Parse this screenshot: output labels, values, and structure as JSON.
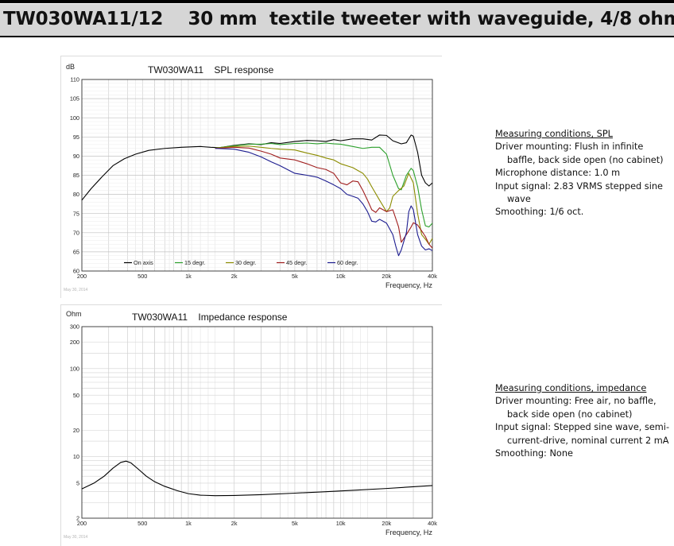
{
  "header": {
    "title": "TW030WA11/12    30 mm  textile tweeter with waveguide, 4/8 ohm"
  },
  "spl_notes": {
    "heading": "Measuring conditions, SPL",
    "lines": [
      "Driver mounting: Flush in infinite baffle, back side open  (no cabinet)",
      "Microphone distance: 1.0 m",
      "Input signal: 2.83 VRMS stepped sine wave",
      "Smoothing: 1/6 oct."
    ]
  },
  "imp_notes": {
    "heading": "Measuring conditions, impedance",
    "lines": [
      "Driver mounting: Free air, no baffle, back side open (no cabinet)",
      "Input signal: Stepped sine wave, semi-current-drive, nominal current 2 mA",
      "Smoothing: None"
    ]
  },
  "chart_data": [
    {
      "type": "line",
      "title": "TW030WA11    SPL response",
      "ylabel": "dB",
      "xlabel": "Frequency, Hz",
      "xscale": "log",
      "xlim": [
        200,
        40000
      ],
      "ylim": [
        60,
        110
      ],
      "x_ticks": [
        200,
        500,
        1000,
        2000,
        5000,
        10000,
        20000,
        40000
      ],
      "x_tick_labels": [
        "200",
        "500",
        "1k",
        "2k",
        "5k",
        "10k",
        "20k",
        "40k"
      ],
      "y_ticks": [
        60,
        65,
        70,
        75,
        80,
        85,
        90,
        95,
        100,
        105,
        110
      ],
      "y_tick_labels": [
        "60",
        "65",
        "70",
        "75",
        "80",
        "85",
        "90",
        "95",
        "100",
        "105",
        "110"
      ],
      "grid": true,
      "legend_position": "bottom-left",
      "date_stamp": "May 30, 2014",
      "series": [
        {
          "name": "On axis",
          "color": "#000000",
          "points": [
            [
              200,
              78.5
            ],
            [
              230,
              81.5
            ],
            [
              270,
              84.5
            ],
            [
              320,
              87.5
            ],
            [
              380,
              89.3
            ],
            [
              450,
              90.5
            ],
            [
              550,
              91.5
            ],
            [
              700,
              92
            ],
            [
              900,
              92.3
            ],
            [
              1200,
              92.5
            ],
            [
              1400,
              92.3
            ],
            [
              1600,
              92.2
            ],
            [
              2000,
              92.8
            ],
            [
              2500,
              93.2
            ],
            [
              3000,
              93.0
            ],
            [
              3500,
              93.5
            ],
            [
              4000,
              93.3
            ],
            [
              5000,
              93.8
            ],
            [
              6000,
              94.1
            ],
            [
              7000,
              94.0
            ],
            [
              8000,
              93.8
            ],
            [
              9000,
              94.3
            ],
            [
              10000,
              94.0
            ],
            [
              12000,
              94.5
            ],
            [
              14000,
              94.5
            ],
            [
              16000,
              94.2
            ],
            [
              18000,
              95.5
            ],
            [
              20000,
              95.4
            ],
            [
              22000,
              94.0
            ],
            [
              25000,
              93.2
            ],
            [
              27000,
              93.5
            ],
            [
              29000,
              95.5
            ],
            [
              30000,
              95.2
            ],
            [
              32000,
              91
            ],
            [
              34000,
              85
            ],
            [
              36000,
              83
            ],
            [
              38000,
              82.2
            ],
            [
              40000,
              83
            ]
          ]
        },
        {
          "name": "15 degr.",
          "color": "#2ca02c",
          "points": [
            [
              1500,
              92.1
            ],
            [
              2000,
              92.7
            ],
            [
              2500,
              93.1
            ],
            [
              3000,
              93.1
            ],
            [
              3500,
              93.3
            ],
            [
              4000,
              93.0
            ],
            [
              5000,
              93.3
            ],
            [
              6000,
              93.4
            ],
            [
              7000,
              93.2
            ],
            [
              8000,
              93.4
            ],
            [
              9000,
              93.2
            ],
            [
              10000,
              93.1
            ],
            [
              12000,
              92.5
            ],
            [
              14000,
              92.0
            ],
            [
              16000,
              92.3
            ],
            [
              18000,
              92.3
            ],
            [
              20000,
              90.5
            ],
            [
              22000,
              85.0
            ],
            [
              24000,
              81.5
            ],
            [
              25000,
              81.2
            ],
            [
              27000,
              85
            ],
            [
              29000,
              86.8
            ],
            [
              30000,
              86.2
            ],
            [
              32000,
              82
            ],
            [
              34000,
              76
            ],
            [
              36000,
              71.8
            ],
            [
              38000,
              71.5
            ],
            [
              40000,
              72.5
            ]
          ]
        },
        {
          "name": "30 degr.",
          "color": "#8c8c00",
          "points": [
            [
              1500,
              92.1
            ],
            [
              2000,
              92.5
            ],
            [
              2500,
              92.6
            ],
            [
              3000,
              92.3
            ],
            [
              3500,
              92.0
            ],
            [
              4000,
              91.8
            ],
            [
              5000,
              91.6
            ],
            [
              6000,
              90.8
            ],
            [
              7000,
              90.2
            ],
            [
              8000,
              89.5
            ],
            [
              9000,
              89.0
            ],
            [
              10000,
              88.0
            ],
            [
              12000,
              87.0
            ],
            [
              14000,
              85.5
            ],
            [
              15000,
              84.0
            ],
            [
              16000,
              82.0
            ],
            [
              18000,
              78.5
            ],
            [
              20000,
              75.5
            ],
            [
              21000,
              76.5
            ],
            [
              22000,
              79.5
            ],
            [
              24000,
              81.0
            ],
            [
              26000,
              82.2
            ],
            [
              28000,
              85.5
            ],
            [
              30000,
              83.0
            ],
            [
              32000,
              75
            ],
            [
              34000,
              69.5
            ],
            [
              36000,
              68.3
            ],
            [
              38000,
              67.0
            ],
            [
              40000,
              68.5
            ]
          ]
        },
        {
          "name": "45 degr.",
          "color": "#a01e1e",
          "points": [
            [
              1500,
              92.0
            ],
            [
              2000,
              92.3
            ],
            [
              2500,
              92.1
            ],
            [
              3000,
              91.3
            ],
            [
              3500,
              90.5
            ],
            [
              4000,
              89.5
            ],
            [
              5000,
              89.0
            ],
            [
              6000,
              88.0
            ],
            [
              7000,
              87.0
            ],
            [
              8000,
              86.5
            ],
            [
              9000,
              85.5
            ],
            [
              10000,
              83.0
            ],
            [
              11000,
              82.5
            ],
            [
              12000,
              83.5
            ],
            [
              13000,
              83.3
            ],
            [
              14000,
              81.0
            ],
            [
              15000,
              78.5
            ],
            [
              16000,
              76.0
            ],
            [
              17000,
              75.3
            ],
            [
              18000,
              76.5
            ],
            [
              20000,
              75.5
            ],
            [
              22000,
              76.0
            ],
            [
              24000,
              71.5
            ],
            [
              25000,
              67.5
            ],
            [
              27000,
              69.5
            ],
            [
              29000,
              71.5
            ],
            [
              30000,
              72.6
            ],
            [
              32000,
              72.0
            ],
            [
              34000,
              70.5
            ],
            [
              36000,
              69.0
            ],
            [
              38000,
              67.0
            ],
            [
              40000,
              66.0
            ]
          ]
        },
        {
          "name": "60 degr.",
          "color": "#1c1c8f",
          "points": [
            [
              1500,
              92.0
            ],
            [
              2000,
              91.8
            ],
            [
              2500,
              91.0
            ],
            [
              3000,
              89.8
            ],
            [
              3500,
              88.5
            ],
            [
              4000,
              87.5
            ],
            [
              5000,
              85.5
            ],
            [
              6000,
              85.0
            ],
            [
              7000,
              84.5
            ],
            [
              8000,
              83.5
            ],
            [
              9000,
              82.5
            ],
            [
              10000,
              81.5
            ],
            [
              11000,
              80.0
            ],
            [
              12000,
              79.5
            ],
            [
              13000,
              79.0
            ],
            [
              14000,
              77.5
            ],
            [
              15000,
              75.5
            ],
            [
              16000,
              73.0
            ],
            [
              17000,
              72.8
            ],
            [
              18000,
              73.5
            ],
            [
              19000,
              73.0
            ],
            [
              20000,
              72.5
            ],
            [
              22000,
              69.5
            ],
            [
              23000,
              66.5
            ],
            [
              24000,
              64.0
            ],
            [
              25000,
              65.5
            ],
            [
              27000,
              70.0
            ],
            [
              28000,
              75.5
            ],
            [
              29000,
              77.0
            ],
            [
              30000,
              76.0
            ],
            [
              32000,
              69.5
            ],
            [
              34000,
              66.5
            ],
            [
              36000,
              65.5
            ],
            [
              38000,
              65.8
            ],
            [
              40000,
              65.3
            ]
          ]
        }
      ]
    },
    {
      "type": "line",
      "title": "TW030WA11    Impedance response",
      "ylabel": "Ohm",
      "xlabel": "Frequency, Hz",
      "xscale": "log",
      "yscale": "log",
      "xlim": [
        200,
        40000
      ],
      "ylim": [
        2,
        300
      ],
      "x_ticks": [
        200,
        500,
        1000,
        2000,
        5000,
        10000,
        20000,
        40000
      ],
      "x_tick_labels": [
        "200",
        "500",
        "1k",
        "2k",
        "5k",
        "10k",
        "20k",
        "40k"
      ],
      "y_ticks": [
        2,
        5,
        10,
        20,
        50,
        100,
        200,
        300
      ],
      "y_tick_labels": [
        "2",
        "5",
        "10",
        "20",
        "50",
        "100",
        "200",
        "300"
      ],
      "grid": true,
      "date_stamp": "May 30, 2014",
      "series": [
        {
          "name": "",
          "color": "#000000",
          "points": [
            [
              200,
              4.3
            ],
            [
              240,
              5.0
            ],
            [
              280,
              6.0
            ],
            [
              320,
              7.4
            ],
            [
              360,
              8.6
            ],
            [
              390,
              8.9
            ],
            [
              420,
              8.5
            ],
            [
              470,
              7.2
            ],
            [
              530,
              6.0
            ],
            [
              600,
              5.2
            ],
            [
              700,
              4.6
            ],
            [
              850,
              4.1
            ],
            [
              1000,
              3.8
            ],
            [
              1200,
              3.65
            ],
            [
              1500,
              3.6
            ],
            [
              2000,
              3.62
            ],
            [
              3000,
              3.7
            ],
            [
              5000,
              3.85
            ],
            [
              8000,
              4.0
            ],
            [
              12000,
              4.15
            ],
            [
              20000,
              4.35
            ],
            [
              30000,
              4.55
            ],
            [
              40000,
              4.7
            ]
          ]
        }
      ]
    }
  ]
}
